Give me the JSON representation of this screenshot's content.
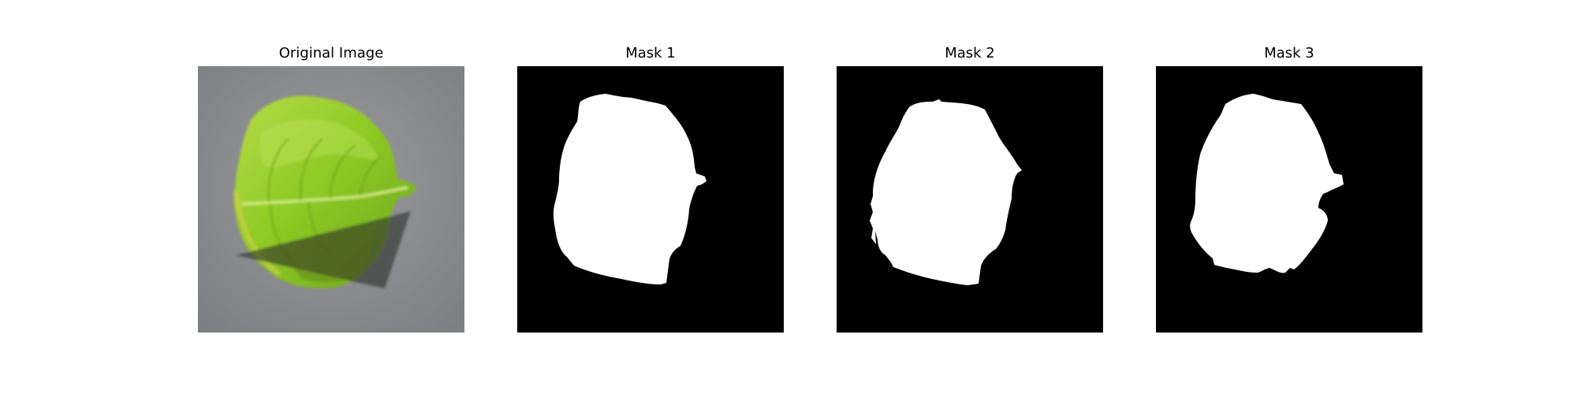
{
  "panels": [
    {
      "title": "Original Image",
      "image": "green-leaf-photo"
    },
    {
      "title": "Mask 1",
      "image": "binary-mask"
    },
    {
      "title": "Mask 2",
      "image": "binary-mask"
    },
    {
      "title": "Mask 3",
      "image": "binary-mask"
    }
  ],
  "colors": {
    "background": "#ffffff",
    "mask_background": "#000000",
    "mask_foreground": "#ffffff",
    "photo_background": "#8a8b8d",
    "leaf_green": "#9fd12f",
    "shadow": "#3e423a"
  }
}
